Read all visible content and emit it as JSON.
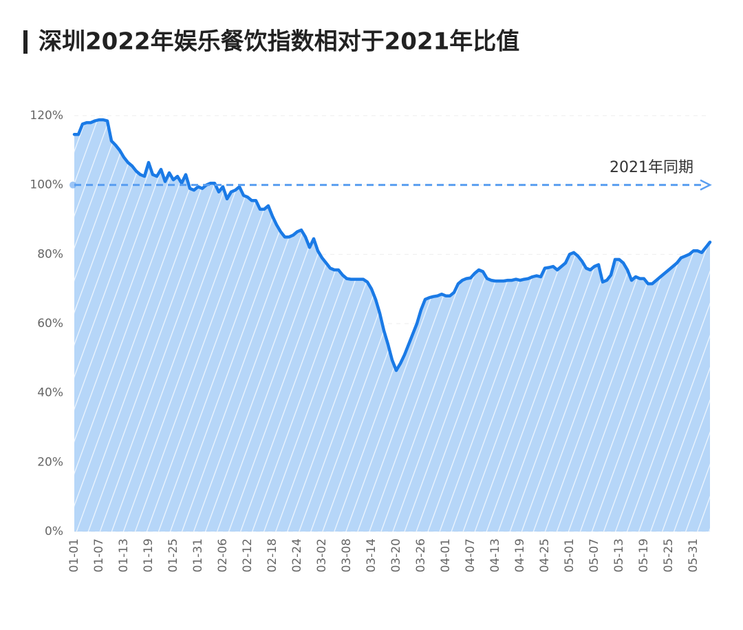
{
  "chart_data": {
    "type": "area",
    "title": "深圳2022年娱乐餐饮指数相对于2021年比值",
    "categories": [
      "01-01",
      null,
      null,
      null,
      null,
      null,
      "01-07",
      null,
      null,
      null,
      null,
      null,
      "01-13",
      null,
      null,
      null,
      null,
      null,
      "01-19",
      null,
      null,
      null,
      null,
      null,
      "01-25",
      null,
      null,
      null,
      null,
      null,
      "01-31",
      null,
      null,
      null,
      null,
      null,
      "02-06",
      null,
      null,
      null,
      null,
      null,
      "02-12",
      null,
      null,
      null,
      null,
      null,
      "02-18",
      null,
      null,
      null,
      null,
      null,
      "02-24",
      null,
      null,
      null,
      null,
      null,
      "03-02",
      null,
      null,
      null,
      null,
      null,
      "03-08",
      null,
      null,
      null,
      null,
      null,
      "03-14",
      null,
      null,
      null,
      null,
      null,
      "03-20",
      null,
      null,
      null,
      null,
      null,
      "03-26",
      null,
      null,
      null,
      null,
      null,
      "04-01",
      null,
      null,
      null,
      null,
      null,
      "04-07",
      null,
      null,
      null,
      null,
      null,
      "04-13",
      null,
      null,
      null,
      null,
      null,
      "04-19",
      null,
      null,
      null,
      null,
      null,
      "04-25",
      null,
      null,
      null,
      null,
      null,
      "05-01",
      null,
      null,
      null,
      null,
      null,
      "05-07",
      null,
      null,
      null,
      null,
      null,
      "05-13",
      null,
      null,
      null,
      null,
      null,
      "05-19",
      null,
      null,
      null,
      null,
      null,
      "05-25",
      null,
      null,
      null,
      null,
      null,
      "05-31",
      null,
      null,
      null,
      null
    ],
    "values": [
      114.6,
      114.6,
      117.6,
      118,
      118,
      118.5,
      118.8,
      118.8,
      118.5,
      112.7,
      111.5,
      110,
      108,
      106.5,
      105.5,
      104,
      103,
      102.5,
      106.5,
      103,
      102.5,
      104.5,
      101,
      103.5,
      101.5,
      102.5,
      100.5,
      103,
      99,
      98.5,
      99.5,
      99,
      100,
      100.5,
      100.5,
      98,
      99.5,
      96,
      98,
      98.5,
      99.5,
      97,
      96.5,
      95.5,
      95.5,
      93,
      93,
      94,
      91,
      88.5,
      86.5,
      85,
      85,
      85.5,
      86.5,
      87,
      85,
      82,
      84.5,
      81,
      79,
      77.5,
      76,
      75.5,
      75.5,
      74,
      73,
      72.8,
      72.8,
      72.8,
      72.8,
      72,
      70,
      67,
      63,
      58,
      54,
      49.5,
      46.5,
      48.5,
      51,
      54,
      57,
      60,
      64,
      67,
      67.5,
      67.8,
      68,
      68.5,
      68,
      68,
      69,
      71.5,
      72.5,
      73,
      73.2,
      74.5,
      75.5,
      75,
      73,
      72.5,
      72.3,
      72.3,
      72.3,
      72.5,
      72.5,
      72.8,
      72.5,
      72.8,
      73,
      73.5,
      73.8,
      73.5,
      76,
      76.2,
      76.5,
      75.5,
      76.5,
      77.5,
      80,
      80.5,
      79.5,
      78,
      76,
      75.5,
      76.5,
      77,
      72,
      72.5,
      74,
      78.5,
      78.5,
      77.5,
      75.5,
      72.5,
      73.5,
      73,
      73,
      71.5,
      71.5,
      72.5,
      73.5,
      74.5,
      75.5,
      76.5,
      77.5,
      79,
      79.5,
      80,
      81,
      81,
      80.5,
      82,
      83.5
    ],
    "color": "#1a7ae6",
    "fill_color": "#b6d6f8",
    "ylim": [
      0,
      120
    ],
    "yticks": [
      {
        "value": 0,
        "label": "0%"
      },
      {
        "value": 20,
        "label": "20%"
      },
      {
        "value": 40,
        "label": "40%"
      },
      {
        "value": 60,
        "label": "60%"
      },
      {
        "value": 80,
        "label": "80%"
      },
      {
        "value": 100,
        "label": "100%"
      },
      {
        "value": 120,
        "label": "120%"
      }
    ],
    "grid": true,
    "reference_line": {
      "value": 100,
      "label": "2021年同期",
      "color": "#5a9ef0"
    }
  }
}
